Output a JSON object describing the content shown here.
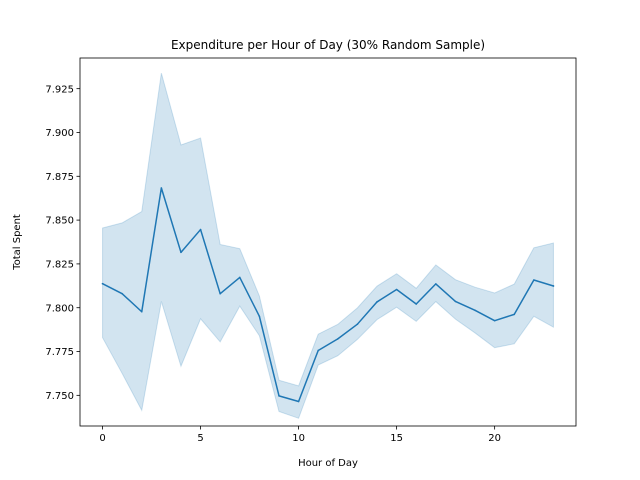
{
  "chart_data": {
    "type": "line",
    "title": "Expenditure per Hour of Day (30% Random Sample)",
    "xlabel": "Hour of Day",
    "ylabel": "Total Spent",
    "xlim": [
      -1.15,
      24.15
    ],
    "ylim": [
      7.7325,
      7.9425
    ],
    "x_ticks": [
      0,
      5,
      10,
      15,
      20
    ],
    "x_tick_labels": [
      "0",
      "5",
      "10",
      "15",
      "20"
    ],
    "y_ticks": [
      7.75,
      7.775,
      7.8,
      7.825,
      7.85,
      7.875,
      7.9,
      7.925
    ],
    "y_tick_labels": [
      "7.750",
      "7.775",
      "7.800",
      "7.825",
      "7.850",
      "7.875",
      "7.900",
      "7.925"
    ],
    "grid": false,
    "series": [
      {
        "color": "#1f77b4",
        "band_color": "#1f77b4",
        "x": [
          0,
          1,
          2,
          3,
          4,
          5,
          6,
          7,
          8,
          9,
          10,
          11,
          12,
          13,
          14,
          15,
          16,
          17,
          18,
          19,
          20,
          21,
          22,
          23
        ],
        "values": [
          7.8137,
          7.808,
          7.7977,
          7.8683,
          7.8316,
          7.8446,
          7.808,
          7.8173,
          7.7951,
          7.7497,
          7.7465,
          7.7756,
          7.7822,
          7.7906,
          7.8033,
          7.8104,
          7.8021,
          7.8136,
          7.8036,
          7.7985,
          7.7926,
          7.7962,
          7.8158,
          7.8124
        ],
        "ci_lower": [
          7.7829,
          7.7625,
          7.7414,
          7.8036,
          7.7666,
          7.7937,
          7.7805,
          7.8009,
          7.784,
          7.7408,
          7.7369,
          7.7673,
          7.7726,
          7.7819,
          7.7932,
          7.8003,
          7.7922,
          7.8035,
          7.7935,
          7.7856,
          7.7772,
          7.7794,
          7.7951,
          7.7889
        ],
        "ci_upper": [
          7.8455,
          7.8484,
          7.8549,
          7.9339,
          7.8929,
          7.8968,
          7.8361,
          7.8337,
          7.8067,
          7.7586,
          7.7554,
          7.7849,
          7.7905,
          7.7999,
          7.8123,
          7.8194,
          7.8111,
          7.8244,
          7.816,
          7.8117,
          7.8084,
          7.8135,
          7.8342,
          7.8369
        ]
      }
    ]
  }
}
